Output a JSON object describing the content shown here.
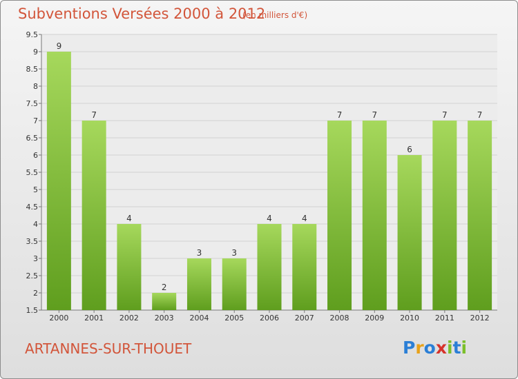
{
  "header": {
    "title": "Subventions Versées 2000 à 2012",
    "unit": "(en milliers d'€)"
  },
  "footer": {
    "place": "ARTANNES-SUR-THOUET",
    "logo": "Proxiti",
    "logo_colors": [
      "#2b7fd6",
      "#e8a21a",
      "#2b7fd6",
      "#d6332b",
      "#7bbf2a",
      "#2b7fd6",
      "#7bbf2a"
    ]
  },
  "colors": {
    "bar_top": "#a6d85c",
    "bar_bottom": "#5f9e1e",
    "accent": "#d2553a"
  },
  "chart_data": {
    "type": "bar",
    "categories": [
      "2000",
      "2001",
      "2002",
      "2003",
      "2004",
      "2005",
      "2006",
      "2007",
      "2008",
      "2009",
      "2010",
      "2011",
      "2012"
    ],
    "values": [
      9,
      7,
      4,
      2,
      3,
      3,
      4,
      4,
      7,
      7,
      6,
      7,
      7
    ],
    "ylim": [
      1.5,
      9.5
    ],
    "yticks": [
      "1.5",
      "2",
      "2.5",
      "3",
      "3.5",
      "4",
      "4.5",
      "5",
      "5.5",
      "6",
      "6.5",
      "7",
      "7.5",
      "8",
      "8.5",
      "9",
      "9.5"
    ],
    "grid": true,
    "xlabel": "",
    "ylabel": ""
  }
}
